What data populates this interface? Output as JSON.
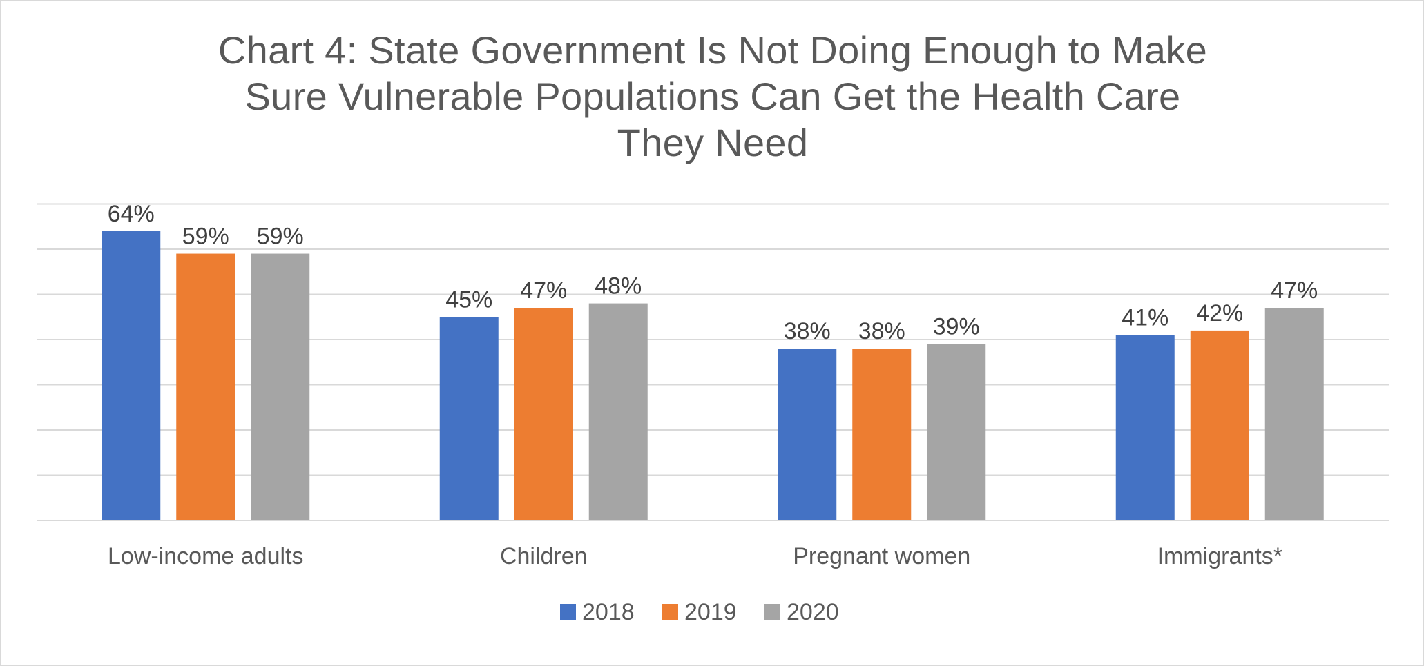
{
  "chart_data": {
    "type": "bar",
    "title_lines": [
      "Chart 4: State Government Is Not Doing Enough to Make",
      "Sure Vulnerable Populations Can Get the Health Care",
      "They Need"
    ],
    "title": "Chart 4: State Government Is Not Doing Enough to Make Sure Vulnerable Populations Can Get the Health Care They Need",
    "categories": [
      "Low-income adults",
      "Children",
      "Pregnant women",
      "Immigrants*"
    ],
    "series": [
      {
        "name": "2018",
        "color": "#4472c4",
        "values": [
          64,
          45,
          38,
          41
        ],
        "labels": [
          "64%",
          "45%",
          "38%",
          "41%"
        ]
      },
      {
        "name": "2019",
        "color": "#ed7d31",
        "values": [
          59,
          47,
          38,
          42
        ],
        "labels": [
          "59%",
          "47%",
          "38%",
          "42%"
        ]
      },
      {
        "name": "2020",
        "color": "#a5a5a5",
        "values": [
          59,
          48,
          39,
          47
        ],
        "labels": [
          "59%",
          "48%",
          "39%",
          "47%"
        ]
      }
    ],
    "ylim": [
      0,
      70
    ],
    "y_axis_visible": false,
    "grid": true,
    "gridline_step": 10,
    "legend_position": "bottom",
    "xlabel": "",
    "ylabel": ""
  }
}
